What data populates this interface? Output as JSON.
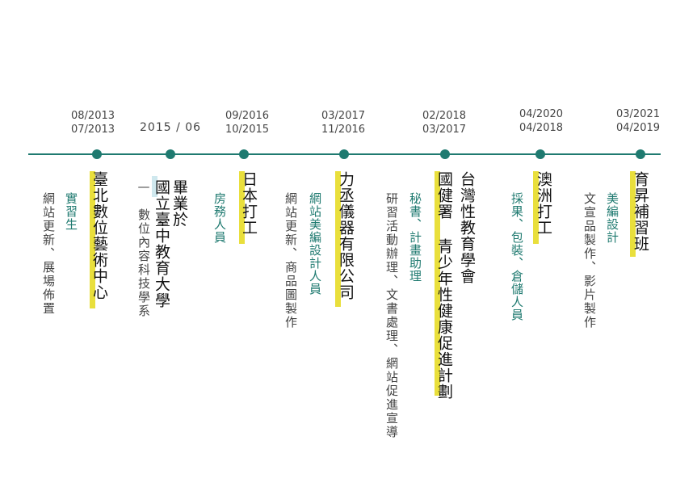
{
  "dates": [
    {
      "top": "08/2013",
      "bottom": "07/2013"
    },
    {
      "single": "2015 / 06"
    },
    {
      "top": "09/2016",
      "bottom": "10/2015"
    },
    {
      "top": "03/2017",
      "bottom": "11/2016"
    },
    {
      "top": "02/2018",
      "bottom": "03/2017"
    },
    {
      "top": "04/2020",
      "bottom": "04/2018"
    },
    {
      "top": "03/2021",
      "bottom": "04/2019"
    }
  ],
  "entries": [
    {
      "desc": "網站更新、展場佈置",
      "role": "實習生",
      "title": "臺北數位藝術中心"
    },
    {
      "title_line1": "畢業於",
      "title_line2": "國立臺中教育大學",
      "desc": "數位內容科技學系"
    },
    {
      "role": "房務人員",
      "title": "日本打工"
    },
    {
      "desc": "網站更新、商品圖製作",
      "role": "網站美編設計人員",
      "title": "力丞儀器有限公司"
    },
    {
      "desc": "研習活動辦理、文書處理、網站促進宣導",
      "role": "秘書、計畫助理",
      "title_line1": "國健署 青少年性健康促進計劃",
      "title_line2": "台灣性教育學會"
    },
    {
      "role": "採果、包裝、倉儲人員",
      "title": "澳洲打工"
    },
    {
      "desc": "文宣品製作、影片製作",
      "role": "美編設計",
      "title": "育昇補習班"
    }
  ]
}
